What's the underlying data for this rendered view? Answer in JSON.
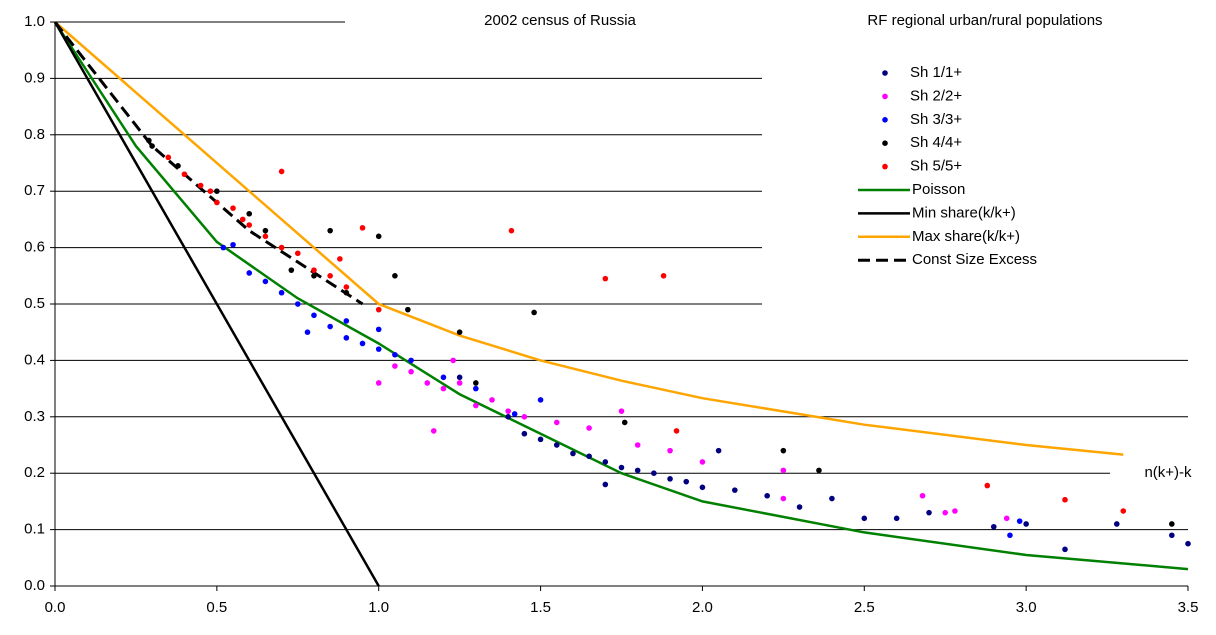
{
  "chart_data": {
    "type": "scatter",
    "title": "2002 census of Russia",
    "subtitle": "RF regional urban/rural populations",
    "x_label": "n(k+)-k",
    "xlim": [
      0,
      3.5
    ],
    "ylim": [
      0,
      1
    ],
    "xticks": [
      {
        "value": 0,
        "label": "0.0"
      },
      {
        "value": 0.5,
        "label": "0.5"
      },
      {
        "value": 1,
        "label": "1.0"
      },
      {
        "value": 1.5,
        "label": "1.5"
      },
      {
        "value": 2,
        "label": "2.0"
      },
      {
        "value": 2.5,
        "label": "2.5"
      },
      {
        "value": 3,
        "label": "3.0"
      },
      {
        "value": 3.5,
        "label": "3.5"
      }
    ],
    "yticks": [
      {
        "value": 0,
        "label": "0.0"
      },
      {
        "value": 0.1,
        "label": "0.1"
      },
      {
        "value": 0.2,
        "label": "0.2"
      },
      {
        "value": 0.3,
        "label": "0.3"
      },
      {
        "value": 0.4,
        "label": "0.4"
      },
      {
        "value": 0.5,
        "label": "0.5"
      },
      {
        "value": 0.6,
        "label": "0.6"
      },
      {
        "value": 0.7,
        "label": "0.7"
      },
      {
        "value": 0.8,
        "label": "0.8"
      },
      {
        "value": 0.9,
        "label": "0.9"
      },
      {
        "value": 1,
        "label": "1.0"
      }
    ],
    "grid": true,
    "series": [
      {
        "name": "Sh 1/1+",
        "color": "#000080",
        "x": [
          1.4,
          1.45,
          1.5,
          1.55,
          1.6,
          1.65,
          1.7,
          1.75,
          1.8,
          1.85,
          1.9,
          1.95,
          2.0,
          2.05,
          2.1,
          2.2,
          2.3,
          2.4,
          2.5,
          2.6,
          2.7,
          2.9,
          3.0,
          3.12,
          3.28,
          3.45,
          3.5,
          1.25,
          1.7
        ],
        "y": [
          0.3,
          0.27,
          0.26,
          0.25,
          0.235,
          0.23,
          0.22,
          0.21,
          0.205,
          0.2,
          0.19,
          0.185,
          0.175,
          0.24,
          0.17,
          0.16,
          0.14,
          0.155,
          0.12,
          0.12,
          0.13,
          0.105,
          0.11,
          0.065,
          0.11,
          0.09,
          0.075,
          0.37,
          0.18
        ]
      },
      {
        "name": "Sh 2/2+",
        "color": "#ff00ff",
        "x": [
          1.0,
          1.05,
          1.1,
          1.15,
          1.2,
          1.25,
          1.3,
          1.35,
          1.4,
          1.45,
          1.55,
          1.65,
          1.75,
          1.8,
          1.9,
          2.0,
          2.25,
          2.25,
          2.68,
          2.75,
          2.78,
          2.94,
          1.17,
          1.23
        ],
        "y": [
          0.36,
          0.39,
          0.38,
          0.36,
          0.35,
          0.36,
          0.32,
          0.33,
          0.31,
          0.3,
          0.29,
          0.28,
          0.31,
          0.25,
          0.24,
          0.22,
          0.205,
          0.155,
          0.16,
          0.13,
          0.133,
          0.12,
          0.275,
          0.4
        ]
      },
      {
        "name": "Sh 3/3+",
        "color": "#0000ff",
        "x": [
          0.52,
          0.55,
          0.6,
          0.65,
          0.7,
          0.75,
          0.8,
          0.85,
          0.9,
          0.95,
          1.0,
          1.05,
          1.1,
          1.2,
          1.3,
          1.42,
          1.5,
          0.9,
          2.95,
          2.98,
          1.0,
          0.78
        ],
        "y": [
          0.6,
          0.605,
          0.555,
          0.54,
          0.52,
          0.5,
          0.48,
          0.46,
          0.44,
          0.43,
          0.42,
          0.41,
          0.4,
          0.37,
          0.35,
          0.305,
          0.33,
          0.47,
          0.09,
          0.115,
          0.455,
          0.45
        ]
      },
      {
        "name": "Sh 4/4+",
        "color": "#000000",
        "x": [
          0.29,
          0.3,
          0.38,
          0.5,
          0.6,
          0.65,
          0.73,
          0.85,
          1.0,
          0.9,
          1.09,
          1.25,
          1.48,
          1.3,
          1.76,
          2.25,
          2.36,
          3.45,
          1.05,
          0.8
        ],
        "y": [
          0.79,
          0.78,
          0.745,
          0.7,
          0.66,
          0.63,
          0.56,
          0.63,
          0.62,
          0.52,
          0.49,
          0.45,
          0.485,
          0.36,
          0.29,
          0.24,
          0.205,
          0.11,
          0.55,
          0.55
        ]
      },
      {
        "name": "Sh 5/5+",
        "color": "#ff0000",
        "x": [
          0.35,
          0.4,
          0.45,
          0.48,
          0.5,
          0.55,
          0.58,
          0.6,
          0.65,
          0.7,
          0.75,
          0.8,
          0.85,
          0.9,
          0.7,
          1.0,
          1.41,
          1.7,
          1.88,
          1.92,
          2.88,
          3.12,
          3.3,
          0.95,
          0.88
        ],
        "y": [
          0.76,
          0.73,
          0.71,
          0.7,
          0.68,
          0.67,
          0.65,
          0.64,
          0.62,
          0.6,
          0.59,
          0.56,
          0.55,
          0.53,
          0.735,
          0.49,
          0.63,
          0.545,
          0.55,
          0.275,
          0.178,
          0.153,
          0.133,
          0.635,
          0.58
        ]
      }
    ],
    "lines": [
      {
        "name": "Poisson",
        "color": "#008000",
        "dash": false,
        "x": [
          0,
          0.25,
          0.5,
          0.75,
          1,
          1.25,
          1.5,
          1.75,
          2,
          2.5,
          3,
          3.5
        ],
        "y": [
          1,
          0.78,
          0.61,
          0.51,
          0.43,
          0.34,
          0.27,
          0.2,
          0.15,
          0.095,
          0.055,
          0.03
        ]
      },
      {
        "name": "Min share(k/k+)",
        "color": "#000000",
        "dash": false,
        "x": [
          0,
          1
        ],
        "y": [
          1,
          0
        ]
      },
      {
        "name": "Max share(k/k+)",
        "color": "#ffa500",
        "dash": false,
        "x": [
          0,
          1,
          1.25,
          1.5,
          1.75,
          2,
          2.5,
          3,
          3.3
        ],
        "y": [
          1,
          0.5,
          0.444,
          0.4,
          0.364,
          0.333,
          0.286,
          0.25,
          0.233
        ]
      },
      {
        "name": "Const Size Excess",
        "color": "#000000",
        "dash": true,
        "x": [
          0,
          0.3,
          0.6,
          0.95
        ],
        "y": [
          1,
          0.78,
          0.63,
          0.5
        ]
      }
    ]
  }
}
